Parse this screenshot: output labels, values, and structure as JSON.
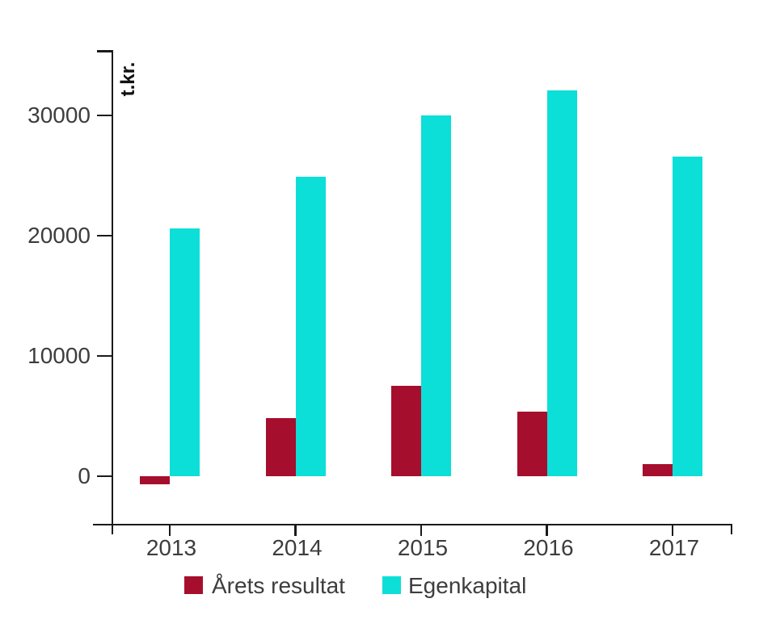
{
  "chart": {
    "background_color": "#ffffff",
    "axis_color": "#1a1a1a",
    "text_color": "#3d3d3d"
  },
  "chart_data": {
    "type": "bar",
    "ylabel": "t.kr.",
    "categories": [
      "2013",
      "2014",
      "2015",
      "2016",
      "2017"
    ],
    "series": [
      {
        "name": "Årets resultat",
        "color": "#A60E2D",
        "values": [
          -700,
          4800,
          7500,
          5400,
          1000
        ]
      },
      {
        "name": "Egenkapital",
        "color": "#0CDFD8",
        "values": [
          20600,
          24900,
          30000,
          32100,
          26600
        ]
      }
    ],
    "yticks": [
      0,
      10000,
      20000,
      30000
    ],
    "ylim": [
      -4000,
      35400
    ],
    "grid": false,
    "legend_position": "bottom"
  }
}
